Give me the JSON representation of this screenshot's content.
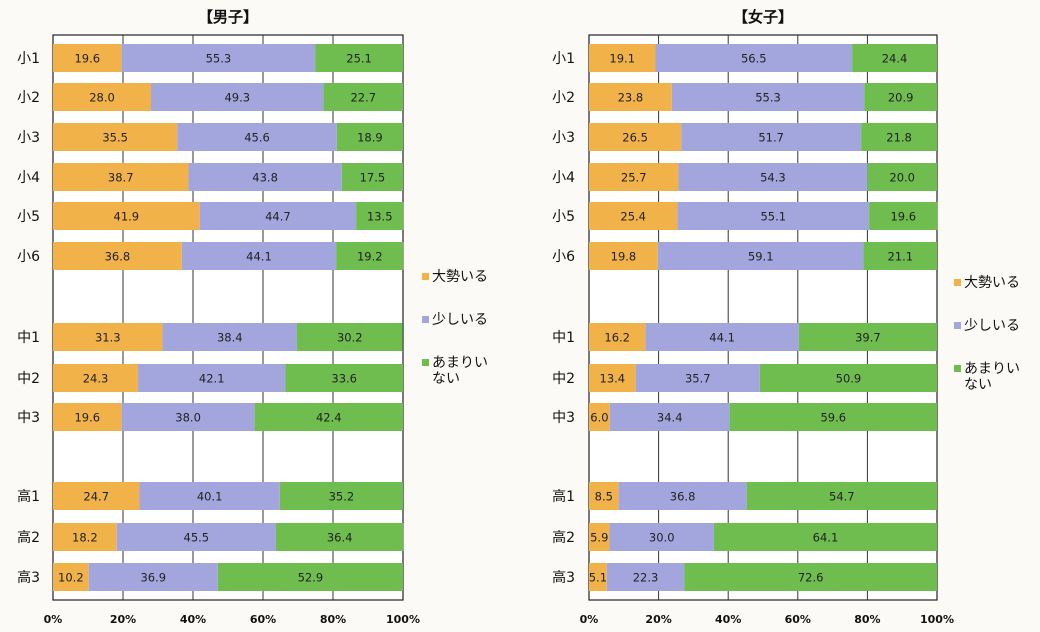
{
  "chart_data": [
    {
      "type": "bar",
      "title": "【男子】",
      "categories": [
        "小1",
        "小2",
        "小3",
        "小4",
        "小5",
        "小6",
        "中1",
        "中2",
        "中3",
        "高1",
        "高2",
        "高3"
      ],
      "series": [
        {
          "name": "大勢いる",
          "values": [
            19.6,
            28.0,
            35.5,
            38.7,
            41.9,
            36.8,
            31.3,
            24.3,
            19.6,
            24.7,
            18.2,
            10.2
          ]
        },
        {
          "name": "少しいる",
          "values": [
            55.3,
            49.3,
            45.6,
            43.8,
            44.7,
            44.1,
            38.4,
            42.1,
            38.0,
            40.1,
            45.5,
            36.9
          ]
        },
        {
          "name": "あまりいない",
          "values": [
            25.1,
            22.7,
            18.9,
            17.5,
            13.5,
            19.2,
            30.2,
            33.6,
            42.4,
            35.2,
            36.4,
            52.9
          ]
        }
      ],
      "xticks": [
        "0%",
        "20%",
        "40%",
        "60%",
        "80%",
        "100%"
      ],
      "xlim": [
        0,
        100
      ],
      "stacked": true,
      "orientation": "horizontal"
    },
    {
      "type": "bar",
      "title": "【女子】",
      "categories": [
        "小1",
        "小2",
        "小3",
        "小4",
        "小5",
        "小6",
        "中1",
        "中2",
        "中3",
        "高1",
        "高2",
        "高3"
      ],
      "series": [
        {
          "name": "大勢いる",
          "values": [
            19.1,
            23.8,
            26.5,
            25.7,
            25.4,
            19.8,
            16.2,
            13.4,
            6.0,
            8.5,
            5.9,
            5.1
          ]
        },
        {
          "name": "少しいる",
          "values": [
            56.5,
            55.3,
            51.7,
            54.3,
            55.1,
            59.1,
            44.1,
            35.7,
            34.4,
            36.8,
            30.0,
            22.3
          ]
        },
        {
          "name": "あまりいない",
          "values": [
            24.4,
            20.9,
            21.8,
            20.0,
            19.6,
            21.1,
            39.7,
            50.9,
            59.6,
            54.7,
            64.1,
            72.6
          ]
        }
      ],
      "xticks": [
        "0%",
        "20%",
        "40%",
        "60%",
        "80%",
        "100%"
      ],
      "xlim": [
        0,
        100
      ],
      "stacked": true,
      "orientation": "horizontal"
    }
  ],
  "legend": [
    {
      "label": [
        "大勢いる"
      ],
      "color": "#f2b24a"
    },
    {
      "label": [
        "少しいる"
      ],
      "color": "#a3a6dc"
    },
    {
      "label": [
        "あまりい",
        "ない"
      ],
      "color": "#6fbd4e"
    }
  ],
  "colors": [
    "#f2b24a",
    "#a3a6dc",
    "#6fbd4e"
  ]
}
